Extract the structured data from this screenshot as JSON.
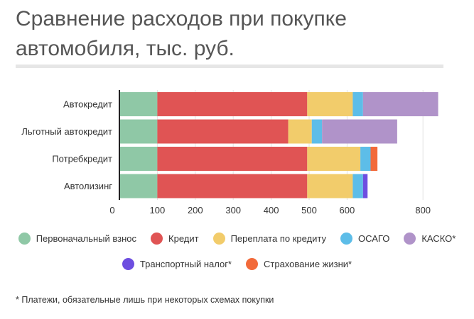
{
  "title": "Сравнение расходов при покупке автомобиля, тыс. руб.",
  "footnote": "* Платежи, обязательные лишь при некоторых схемах покупки",
  "chart_data": {
    "type": "bar",
    "orientation": "horizontal",
    "stacked": true,
    "categories": [
      "Автокредит",
      "Льготный автокредит",
      "Потребкредит",
      "Автолизинг"
    ],
    "series": [
      {
        "name": "Первоначальный взнос",
        "color": "#8fc8a6",
        "values": [
          100,
          100,
          100,
          100
        ]
      },
      {
        "name": "Кредит",
        "color": "#e05454",
        "values": [
          395,
          345,
          395,
          395
        ]
      },
      {
        "name": "Переплата по кредиту",
        "color": "#f2cc6b",
        "values": [
          120,
          62,
          140,
          120
        ]
      },
      {
        "name": "ОСАГО",
        "color": "#5dbde8",
        "values": [
          27,
          27,
          27,
          27
        ]
      },
      {
        "name": "КАСКО*",
        "color": "#b093c9",
        "values": [
          198,
          198,
          0,
          0
        ]
      },
      {
        "name": "Транспортный налог*",
        "color": "#6d4ee0",
        "values": [
          0,
          0,
          0,
          12
        ]
      },
      {
        "name": "Страхование жизни*",
        "color": "#f26a3a",
        "values": [
          0,
          0,
          18,
          0
        ]
      }
    ],
    "xticks": [
      0,
      100,
      200,
      300,
      400,
      500,
      600,
      800
    ],
    "xlim": [
      0,
      860
    ],
    "grid": "vertical",
    "legend_position": "bottom"
  },
  "legend_rows": [
    [
      0,
      1,
      2,
      3,
      4
    ],
    [
      5,
      6
    ]
  ]
}
